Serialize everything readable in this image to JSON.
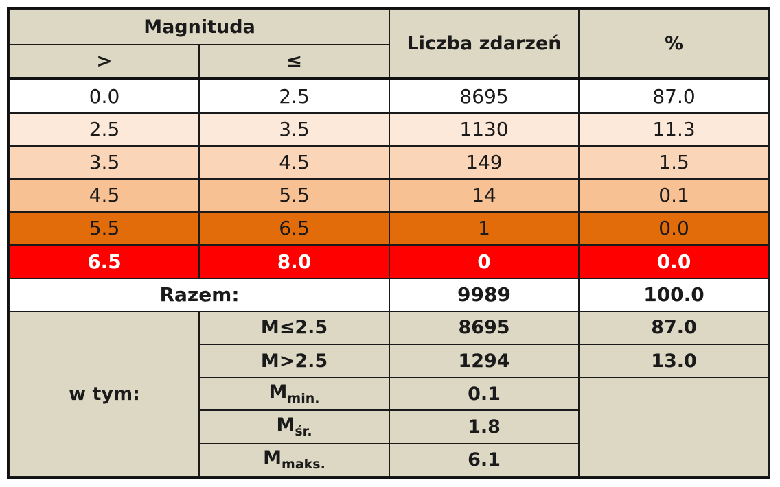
{
  "header": {
    "magnitude": "Magnituda",
    "gt": ">",
    "le": "≤",
    "count": "Liczba zdarzeń",
    "percent": "%"
  },
  "rows": [
    {
      "from": "0.0",
      "to": "2.5",
      "count": "8695",
      "percent": "87.0",
      "bg": "#ffffff"
    },
    {
      "from": "2.5",
      "to": "3.5",
      "count": "1130",
      "percent": "11.3",
      "bg": "#fde9da"
    },
    {
      "from": "3.5",
      "to": "4.5",
      "count": "149",
      "percent": "1.5",
      "bg": "#fbd5b8"
    },
    {
      "from": "4.5",
      "to": "5.5",
      "count": "14",
      "percent": "0.1",
      "bg": "#f8c194"
    },
    {
      "from": "5.5",
      "to": "6.5",
      "count": "1",
      "percent": "0.0",
      "bg": "#e36c0a"
    },
    {
      "from": "6.5",
      "to": "8.0",
      "count": "0",
      "percent": "0.0",
      "bg": "#ff0000"
    }
  ],
  "total": {
    "label": "Razem:",
    "count": "9989",
    "percent": "100.0"
  },
  "breakdown": {
    "label": "w tym:",
    "le25": {
      "label": "M≤2.5",
      "count": "8695",
      "percent": "87.0"
    },
    "gt25": {
      "label": "M>2.5",
      "count": "1294",
      "percent": "13.0"
    },
    "min": {
      "base": "M",
      "sub": "min.",
      "value": "0.1"
    },
    "avg": {
      "base": "M",
      "sub": "śr.",
      "value": "1.8"
    },
    "max": {
      "base": "M",
      "sub": "maks.",
      "value": "6.1"
    }
  },
  "colors": {
    "header_bg": "#ddd8c4",
    "border": "#1a1a1a"
  }
}
